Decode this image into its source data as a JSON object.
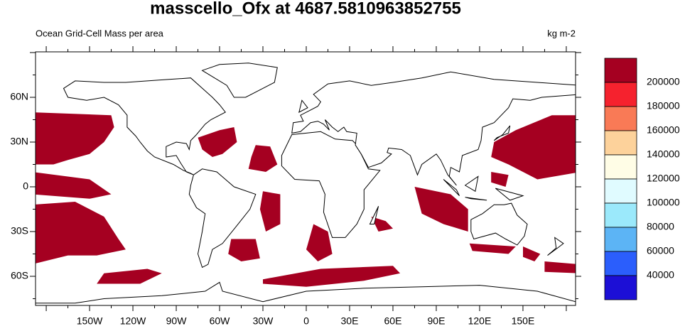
{
  "header": {
    "title": "masscello_Ofx at 4687.5810963852755",
    "left_subtitle": "Ocean Grid-Cell Mass per area",
    "right_subtitle": "kg m-2"
  },
  "axes": {
    "x_labels": [
      "150W",
      "120W",
      "90W",
      "60W",
      "30W",
      "0",
      "30E",
      "60E",
      "90E",
      "120E",
      "150E"
    ],
    "y_labels": [
      "60N",
      "30N",
      "0",
      "30S",
      "60S"
    ]
  },
  "colorbar": {
    "labels": [
      "200000",
      "180000",
      "160000",
      "140000",
      "120000",
      "100000",
      "80000",
      "60000",
      "40000"
    ],
    "colors": [
      "#a50021",
      "#f5222e",
      "#f97a56",
      "#fdd29b",
      "#fffde6",
      "#e0fbff",
      "#9be9fb",
      "#5cb4f5",
      "#2b5efc",
      "#1c0fd6"
    ]
  }
}
